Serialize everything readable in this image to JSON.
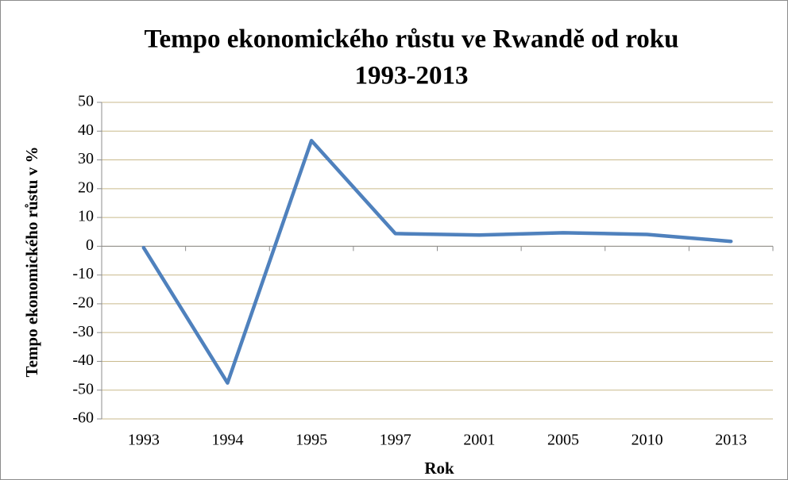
{
  "chart_data": {
    "type": "line",
    "title": "Tempo ekonomického růstu ve Rwandě od roku 1993-2013",
    "title_lines": [
      "Tempo ekonomického růstu ve Rwandě od roku",
      "1993-2013"
    ],
    "x_label": "Rok",
    "y_label": "Tempo ekonomického růstu v %",
    "categories": [
      "1993",
      "1994",
      "1995",
      "1997",
      "2001",
      "2005",
      "2010",
      "2013"
    ],
    "series": [
      {
        "name": "Tempo ekonomického růstu",
        "color": "#4f81bd",
        "values": [
          -0.5,
          -47.5,
          36.7,
          4.4,
          3.9,
          4.7,
          4.1,
          1.7
        ]
      }
    ],
    "ylim": [
      -60,
      50
    ],
    "yticks": [
      -60,
      -50,
      -40,
      -30,
      -20,
      -10,
      0,
      10,
      20,
      30,
      40,
      50
    ],
    "grid": true,
    "grid_color": "#c9ba8c"
  }
}
